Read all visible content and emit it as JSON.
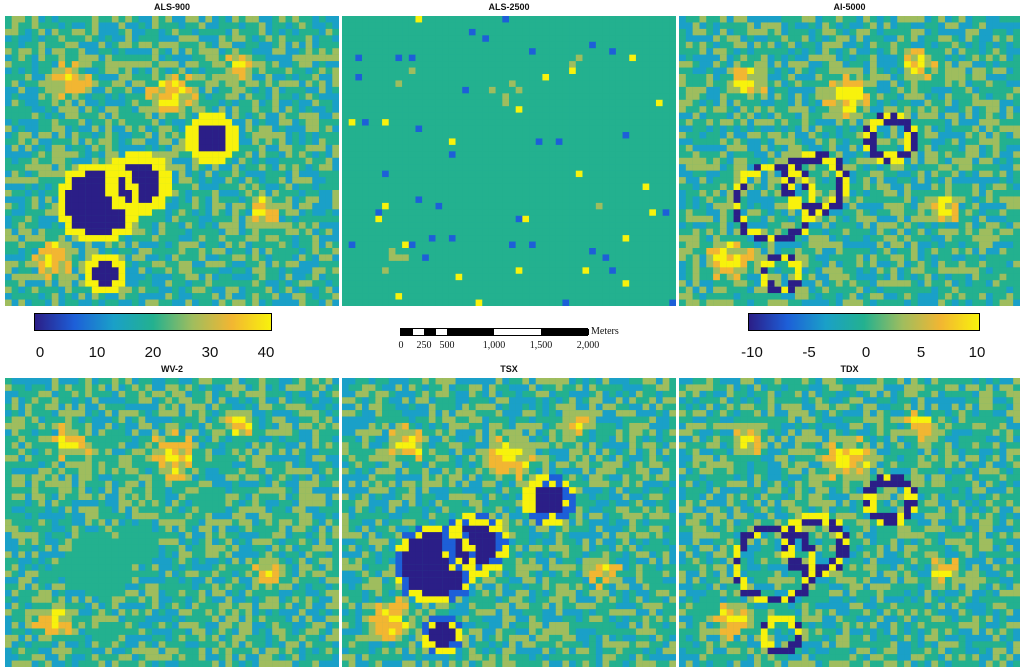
{
  "panels": [
    {
      "id": "als900",
      "title": "ALS-900",
      "seed": 11,
      "scheme": "abs",
      "blobs": "strong"
    },
    {
      "id": "als2500",
      "title": "ALS-2500",
      "seed": 23,
      "scheme": "abs",
      "blobs": "flat"
    },
    {
      "id": "ai5000",
      "title": "AI-5000",
      "seed": 37,
      "scheme": "diff",
      "blobs": "outline"
    },
    {
      "id": "wv2",
      "title": "WV-2",
      "seed": 41,
      "scheme": "diff",
      "blobs": "soft"
    },
    {
      "id": "tsx",
      "title": "TSX",
      "seed": 53,
      "scheme": "diff",
      "blobs": "strong"
    },
    {
      "id": "tdx",
      "title": "TDX",
      "seed": 67,
      "scheme": "diff",
      "blobs": "outline"
    }
  ],
  "colorbar_left": {
    "ticks": [
      "0",
      "10",
      "20",
      "30",
      "40"
    ],
    "range": [
      0,
      40
    ],
    "colors": [
      "#2b1e87",
      "#1d5fd8",
      "#1aa0c8",
      "#23b18f",
      "#9fbd5e",
      "#f2b632",
      "#f8f20c"
    ]
  },
  "colorbar_right": {
    "ticks": [
      "-10",
      "-5",
      "0",
      "5",
      "10"
    ],
    "range": [
      -10,
      10
    ],
    "colors": [
      "#2b1e87",
      "#1d5fd8",
      "#1aa0c8",
      "#23b18f",
      "#9fbd5e",
      "#f2b632",
      "#f8f20c"
    ]
  },
  "scalebar": {
    "labels": [
      "0",
      "250",
      "500",
      "1,000",
      "1,500",
      "2,000"
    ],
    "unit": "Meters"
  }
}
